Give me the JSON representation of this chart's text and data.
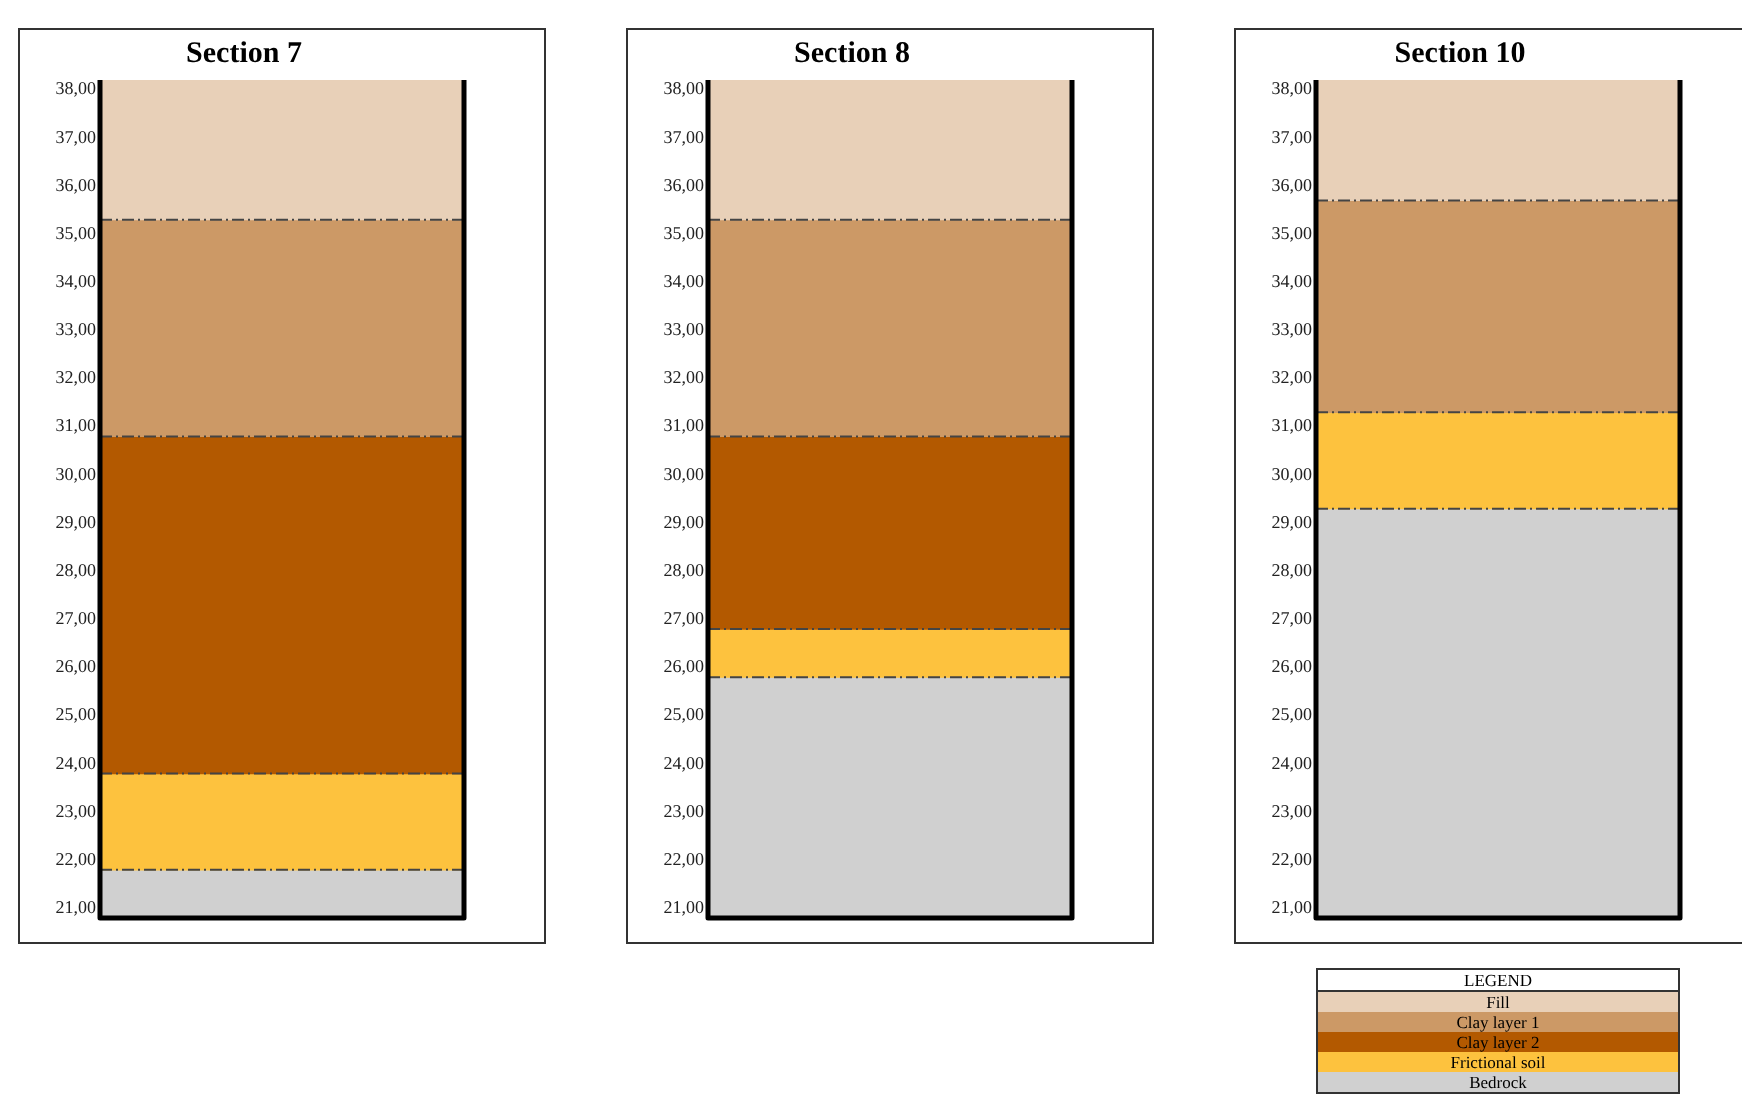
{
  "chart_data": [
    {
      "type": "bar",
      "title": "Section 7",
      "categories": [
        null
      ],
      "legend_title": "LEGEND",
      "series": [
        {
          "name": "Fill",
          "color": "#e8d0b8",
          "base": [
            35.3
          ],
          "values": [
            2.9
          ]
        },
        {
          "name": "Clay layer 1",
          "color": "#cc9966",
          "base": [
            30.8
          ],
          "values": [
            4.5
          ]
        },
        {
          "name": "Clay layer 2",
          "color": "#b35900",
          "base": [
            23.8
          ],
          "values": [
            7.0
          ]
        },
        {
          "name": "Frictional soil",
          "color": "#fdc23e",
          "base": [
            21.8
          ],
          "values": [
            2.0
          ]
        },
        {
          "name": "Bedrock",
          "color": "#d0d0d0",
          "base": [
            20.8
          ],
          "values": [
            1.0
          ]
        }
      ],
      "ylim": [
        20.8,
        38.2
      ],
      "yticks": [
        {
          "value": 21,
          "label": "21,00"
        },
        {
          "value": 22,
          "label": "22,00"
        },
        {
          "value": 23,
          "label": "23,00"
        },
        {
          "value": 24,
          "label": "24,00"
        },
        {
          "value": 25,
          "label": "25,00"
        },
        {
          "value": 26,
          "label": "26,00"
        },
        {
          "value": 27,
          "label": "27,00"
        },
        {
          "value": 28,
          "label": "28,00"
        },
        {
          "value": 29,
          "label": "29,00"
        },
        {
          "value": 30,
          "label": "30,00"
        },
        {
          "value": 31,
          "label": "31,00"
        },
        {
          "value": 32,
          "label": "32,00"
        },
        {
          "value": 33,
          "label": "33,00"
        },
        {
          "value": 34,
          "label": "34,00"
        },
        {
          "value": 35,
          "label": "35,00"
        },
        {
          "value": 36,
          "label": "36,00"
        },
        {
          "value": 37,
          "label": "37,00"
        },
        {
          "value": 38,
          "label": "38,00"
        }
      ],
      "legend": "bottom right"
    },
    {
      "type": "bar",
      "title": "Section 8",
      "categories": [
        null
      ],
      "series": [
        {
          "color": "#e8d0b8",
          "base": [
            35.3
          ],
          "values": [
            2.9
          ]
        },
        {
          "color": "#cc9966",
          "base": [
            30.8
          ],
          "values": [
            4.5
          ]
        },
        {
          "color": "#b35900",
          "base": [
            26.8
          ],
          "values": [
            4.0
          ]
        },
        {
          "color": "#fdc23e",
          "base": [
            25.8
          ],
          "values": [
            1.0
          ]
        },
        {
          "color": "#d0d0d0",
          "base": [
            20.8
          ],
          "values": [
            5.0
          ]
        }
      ],
      "ylim": [
        20.8,
        38.2
      ],
      "yticks": [
        {
          "value": 21,
          "label": "21,00"
        },
        {
          "value": 22,
          "label": "22,00"
        },
        {
          "value": 23,
          "label": "23,00"
        },
        {
          "value": 24,
          "label": "24,00"
        },
        {
          "value": 25,
          "label": "25,00"
        },
        {
          "value": 26,
          "label": "26,00"
        },
        {
          "value": 27,
          "label": "27,00"
        },
        {
          "value": 28,
          "label": "28,00"
        },
        {
          "value": 29,
          "label": "29,00"
        },
        {
          "value": 30,
          "label": "30,00"
        },
        {
          "value": 31,
          "label": "31,00"
        },
        {
          "value": 32,
          "label": "32,00"
        },
        {
          "value": 33,
          "label": "33,00"
        },
        {
          "value": 34,
          "label": "34,00"
        },
        {
          "value": 35,
          "label": "35,00"
        },
        {
          "value": 36,
          "label": "36,00"
        },
        {
          "value": 37,
          "label": "37,00"
        },
        {
          "value": 38,
          "label": "38,00"
        }
      ],
      "legend": false
    },
    {
      "type": "bar",
      "title": "Section 10",
      "categories": [
        null
      ],
      "series": [
        {
          "color": "#e8d0b8",
          "base": [
            35.7
          ],
          "values": [
            2.5
          ]
        },
        {
          "color": "#cc9966",
          "base": [
            31.3
          ],
          "values": [
            4.4
          ]
        },
        {
          "color": "#fdc23e",
          "base": [
            29.3
          ],
          "values": [
            2.0
          ]
        },
        {
          "color": "#d0d0d0",
          "base": [
            20.8
          ],
          "values": [
            8.5
          ]
        }
      ],
      "ylim": [
        20.8,
        38.2
      ],
      "yticks": [
        {
          "value": 21,
          "label": "21,00"
        },
        {
          "value": 22,
          "label": "22,00"
        },
        {
          "value": 23,
          "label": "23,00"
        },
        {
          "value": 24,
          "label": "24,00"
        },
        {
          "value": 25,
          "label": "25,00"
        },
        {
          "value": 26,
          "label": "26,00"
        },
        {
          "value": 27,
          "label": "27,00"
        },
        {
          "value": 28,
          "label": "28,00"
        },
        {
          "value": 29,
          "label": "29,00"
        },
        {
          "value": 30,
          "label": "30,00"
        },
        {
          "value": 31,
          "label": "31,00"
        },
        {
          "value": 32,
          "label": "32,00"
        },
        {
          "value": 33,
          "label": "33,00"
        },
        {
          "value": 34,
          "label": "34,00"
        },
        {
          "value": 35,
          "label": "35,00"
        },
        {
          "value": 36,
          "label": "36,00"
        },
        {
          "value": 37,
          "label": "37,00"
        },
        {
          "value": 38,
          "label": "38,00"
        }
      ],
      "legend": false
    }
  ]
}
